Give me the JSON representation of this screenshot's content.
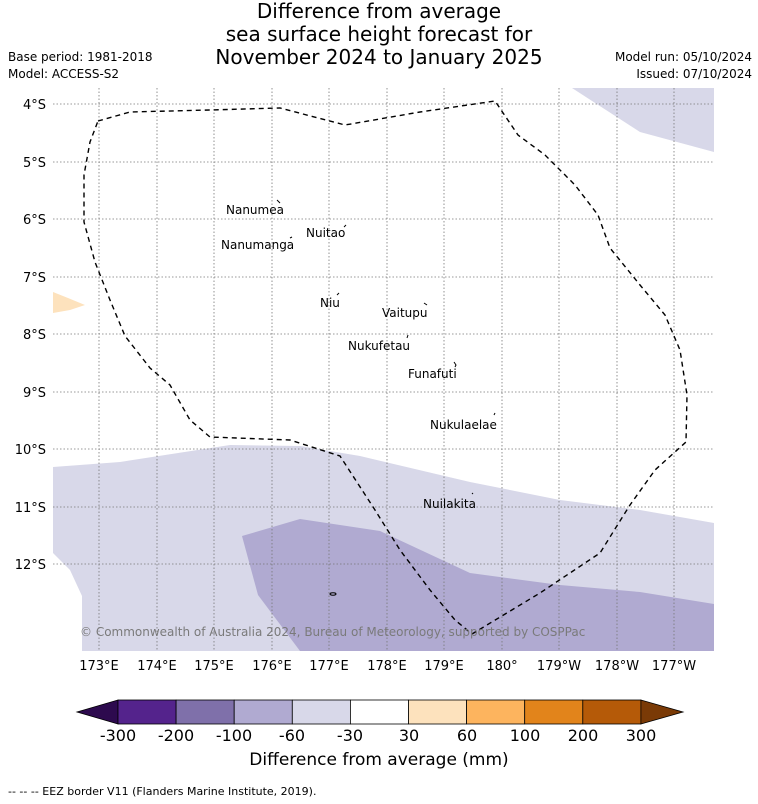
{
  "header": {
    "title_lines": [
      "Difference from average",
      "sea surface height forecast for",
      "November 2024 to January 2025"
    ],
    "base_period": "Base period: 1981-2018",
    "model": "Model: ACCESS-S2",
    "model_run": "Model run: 05/10/2024",
    "issued": "Issued: 07/10/2024"
  },
  "map": {
    "lat_labels": [
      "4°S",
      "5°S",
      "6°S",
      "7°S",
      "8°S",
      "9°S",
      "10°S",
      "11°S",
      "12°S"
    ],
    "lon_labels": [
      "173°E",
      "174°E",
      "175°E",
      "176°E",
      "177°E",
      "178°E",
      "179°E",
      "180°",
      "179°W",
      "178°W",
      "177°W"
    ],
    "islands": [
      "Nanumea",
      "Nuitao",
      "Nanumanga",
      "Niu",
      "Vaitupu",
      "Nukufetau",
      "Funafuti",
      "Nukulaelae",
      "Nuilakita"
    ],
    "copyright": "© Commonwealth of Australia 2024, Bureau of Meteorology, supported by COSPPac"
  },
  "colorbar": {
    "ticks": [
      "-300",
      "-200",
      "-100",
      "-60",
      "-30",
      "30",
      "60",
      "100",
      "200",
      "300"
    ],
    "colors": [
      "#2d0a4e",
      "#54238c",
      "#7f70aa",
      "#b0aad1",
      "#d8d8e9",
      "#ffffff",
      "#fde2bd",
      "#fdb45e",
      "#e2841b",
      "#b55a08",
      "#7a3a06"
    ],
    "label": "Difference from average (mm)"
  },
  "footer": "-- -- -- EEZ border V11 (Flanders Marine Institute, 2019)."
}
